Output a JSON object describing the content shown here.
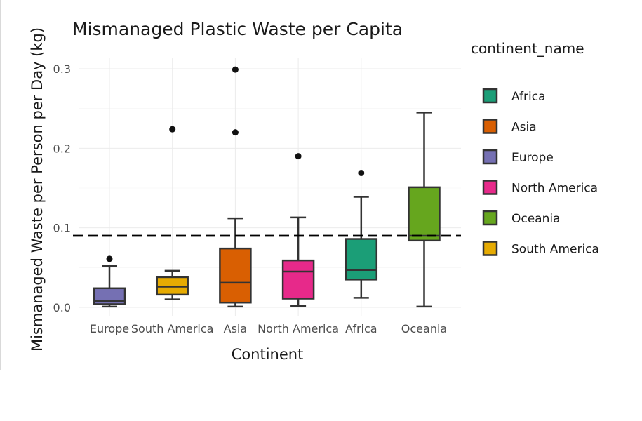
{
  "chart_data": {
    "type": "box",
    "title": "Mismanaged Plastic Waste per Capita",
    "xlabel": "Continent",
    "ylabel": "Mismanaged Waste per Person per Day (kg)",
    "ylim": [
      -0.012,
      0.315
    ],
    "yticks": [
      "0.0",
      "0.1",
      "0.2",
      "0.3"
    ],
    "ytick_values": [
      0.0,
      0.1,
      0.2,
      0.3
    ],
    "grid": true,
    "reference_line": {
      "y": 0.09,
      "style": "dashed"
    },
    "legend": {
      "title": "continent_name",
      "position": "right"
    },
    "legend_entries": [
      {
        "name": "Africa",
        "color": "#1b9e77"
      },
      {
        "name": "Asia",
        "color": "#d95f02"
      },
      {
        "name": "Europe",
        "color": "#7570b3"
      },
      {
        "name": "North America",
        "color": "#e7298a"
      },
      {
        "name": "Oceania",
        "color": "#66a61e"
      },
      {
        "name": "South America",
        "color": "#e6ab02"
      }
    ],
    "categories": [
      "Europe",
      "South America",
      "Asia",
      "North America",
      "Africa",
      "Oceania"
    ],
    "boxes": [
      {
        "category": "Europe",
        "color": "#7570b3",
        "min": 0.001,
        "q1": 0.004,
        "median": 0.008,
        "q3": 0.024,
        "max": 0.052,
        "outliers": [
          0.061
        ]
      },
      {
        "category": "South America",
        "color": "#e6ab02",
        "min": 0.01,
        "q1": 0.016,
        "median": 0.026,
        "q3": 0.038,
        "max": 0.046,
        "outliers": [
          0.224
        ]
      },
      {
        "category": "Asia",
        "color": "#d95f02",
        "min": 0.001,
        "q1": 0.006,
        "median": 0.031,
        "q3": 0.074,
        "max": 0.112,
        "outliers": [
          0.22,
          0.299
        ]
      },
      {
        "category": "North America",
        "color": "#e7298a",
        "min": 0.002,
        "q1": 0.011,
        "median": 0.045,
        "q3": 0.059,
        "max": 0.113,
        "outliers": [
          0.19
        ]
      },
      {
        "category": "Africa",
        "color": "#1b9e77",
        "min": 0.012,
        "q1": 0.035,
        "median": 0.047,
        "q3": 0.086,
        "max": 0.139,
        "outliers": [
          0.169
        ]
      },
      {
        "category": "Oceania",
        "color": "#66a61e",
        "min": 0.001,
        "q1": 0.084,
        "median": 0.09,
        "q3": 0.151,
        "max": 0.245,
        "outliers": []
      }
    ]
  }
}
